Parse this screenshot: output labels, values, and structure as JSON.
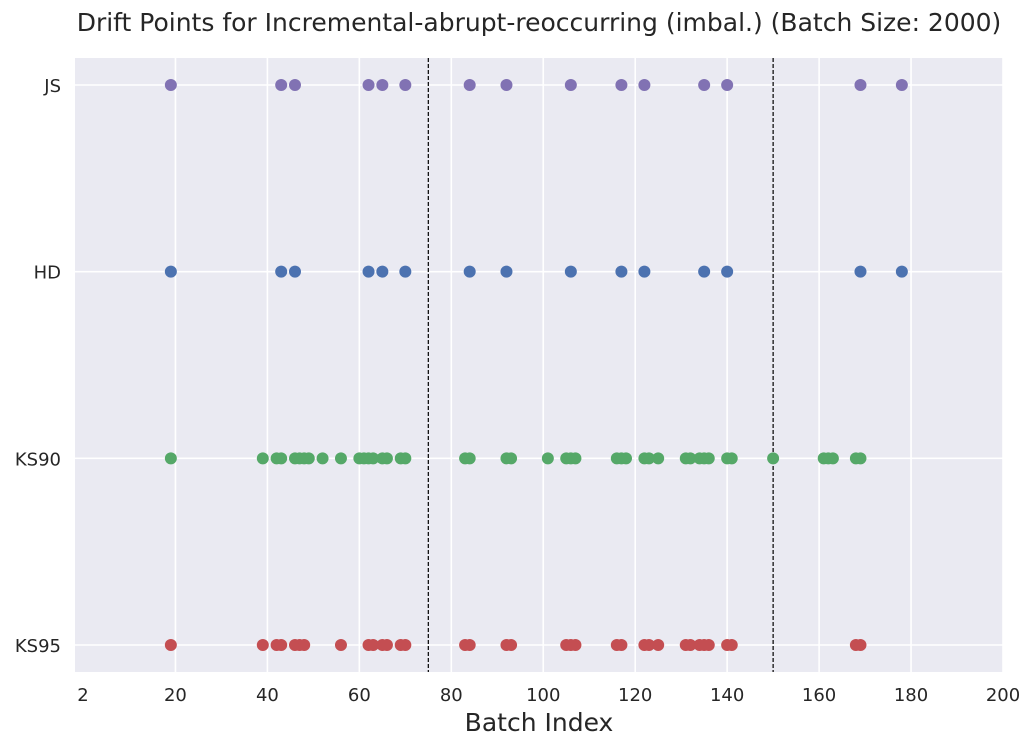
{
  "chart_data": {
    "type": "scatter",
    "title": "Drift Points for Incremental-abrupt-reoccurring (imbal.) (Batch Size: 2000)",
    "xlabel": "Batch Index",
    "ylabel": "",
    "xlim": [
      0,
      200
    ],
    "xticks": [
      2,
      20,
      40,
      60,
      80,
      100,
      120,
      140,
      160,
      180,
      200
    ],
    "grid": true,
    "categories": [
      "KS95",
      "KS90",
      "HD",
      "JS"
    ],
    "vlines": [
      75,
      150
    ],
    "series": [
      {
        "category": "JS",
        "color": "#8172b3",
        "x": [
          19,
          43,
          46,
          62,
          65,
          70,
          84,
          92,
          106,
          117,
          122,
          135,
          140,
          169,
          178
        ]
      },
      {
        "category": "HD",
        "color": "#4c72b0",
        "x": [
          19,
          43,
          46,
          62,
          65,
          70,
          84,
          92,
          106,
          117,
          122,
          135,
          140,
          169,
          178
        ]
      },
      {
        "category": "KS90",
        "color": "#55a868",
        "x": [
          19,
          39,
          42,
          43,
          46,
          47,
          48,
          49,
          52,
          56,
          60,
          61,
          62,
          63,
          65,
          66,
          69,
          70,
          83,
          84,
          92,
          93,
          101,
          105,
          106,
          107,
          116,
          117,
          118,
          122,
          123,
          125,
          131,
          132,
          134,
          135,
          136,
          140,
          141,
          150,
          161,
          162,
          163,
          168,
          169
        ]
      },
      {
        "category": "KS95",
        "color": "#c44e52",
        "x": [
          19,
          39,
          42,
          43,
          46,
          47,
          48,
          56,
          62,
          63,
          65,
          66,
          69,
          70,
          83,
          84,
          92,
          93,
          105,
          106,
          107,
          116,
          117,
          122,
          123,
          125,
          131,
          132,
          134,
          135,
          136,
          140,
          141,
          168,
          169
        ]
      }
    ]
  }
}
